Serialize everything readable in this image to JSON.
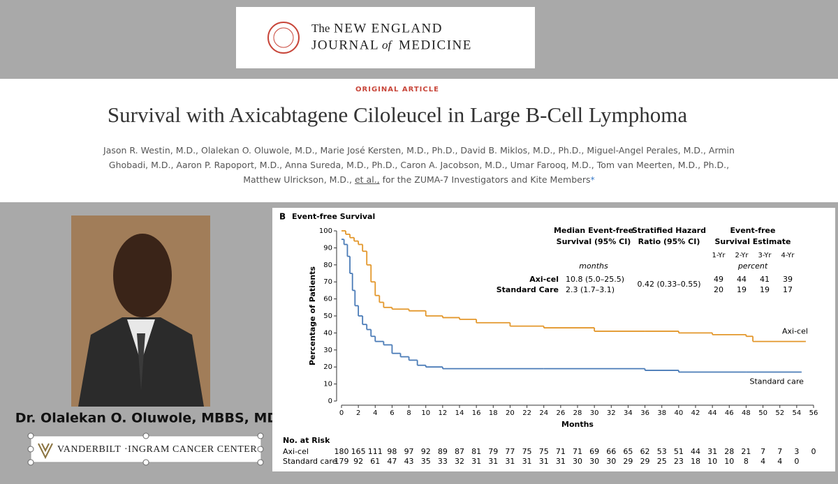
{
  "journal": {
    "line1_prefix": "The",
    "line1": "NEW ENGLAND",
    "line2_a": "JOURNAL",
    "line2_of": "of",
    "line2_b": "MEDICINE"
  },
  "article": {
    "kicker": "ORIGINAL ARTICLE",
    "title": "Survival with Axicabtagene Ciloleucel in Large B-Cell Lymphoma",
    "authors": "Jason R. Westin, M.D., Olalekan O. Oluwole, M.D., Marie José Kersten, M.D., Ph.D., David B. Miklos, M.D., Ph.D., Miguel-Angel Perales, M.D., Armin Ghobadi, M.D., Aaron P. Rapoport, M.D., Anna Sureda, M.D., Ph.D., Caron A. Jacobson, M.D., Umar Farooq, M.D., Tom van Meerten, M.D., Ph.D., Matthew Ulrickson, M.D.,",
    "et_al": "et al.,",
    "authors_end": "for the ZUMA-7 Investigators and Kite Members",
    "asterisk": "*"
  },
  "speaker": {
    "name": "Dr. Olalekan O. Oluwole, MBBS, MD",
    "org_a": "VANDERBILT",
    "org_b": "·INGRAM CANCER CENTER"
  },
  "chart_data": {
    "type": "step",
    "panel": "B",
    "title": "Event-free Survival",
    "x_label": "Months",
    "y_label": "Percentage of Patients",
    "xlim": [
      0,
      56
    ],
    "xticks": [
      0,
      2,
      4,
      6,
      8,
      10,
      12,
      14,
      16,
      18,
      20,
      22,
      24,
      26,
      28,
      30,
      32,
      34,
      36,
      38,
      40,
      42,
      44,
      46,
      48,
      50,
      52,
      54,
      56
    ],
    "ylim": [
      0,
      100
    ],
    "yticks": [
      0,
      10,
      20,
      30,
      40,
      50,
      60,
      70,
      80,
      90,
      100
    ],
    "series": [
      {
        "name": "Axi-cel",
        "color": "#e3972b",
        "x": [
          0,
          0.5,
          1,
          1.5,
          2,
          2.5,
          3,
          3.5,
          4,
          4.5,
          5,
          6,
          8,
          10,
          12,
          14,
          16,
          20,
          24,
          30,
          36,
          40,
          44,
          48,
          48.8,
          55
        ],
        "values": [
          100,
          98,
          96,
          94,
          92,
          88,
          80,
          70,
          62,
          58,
          55,
          54,
          53,
          50,
          49,
          48,
          46,
          44,
          43,
          41,
          41,
          40,
          39,
          38,
          35,
          35
        ]
      },
      {
        "name": "Standard care",
        "color": "#4a7bb7",
        "x": [
          0,
          0.3,
          0.7,
          1,
          1.3,
          1.6,
          2,
          2.5,
          3,
          3.5,
          4,
          5,
          6,
          7,
          8,
          9,
          10,
          12,
          24,
          36,
          40,
          48,
          54.5
        ],
        "values": [
          95,
          92,
          85,
          75,
          65,
          56,
          50,
          45,
          42,
          38,
          35,
          33,
          28,
          26,
          24,
          21,
          20,
          19,
          19,
          18,
          17,
          17,
          17
        ]
      }
    ],
    "stats": {
      "median_header": [
        "Median Event-free",
        "Survival (95% CI)"
      ],
      "hr_header": [
        "Stratified Hazard",
        "Ratio (95% CI)"
      ],
      "efs_header": [
        "Event-free",
        "Survival Estimate"
      ],
      "years": [
        "1-Yr",
        "2-Yr",
        "3-Yr",
        "4-Yr"
      ],
      "median_unit": "months",
      "efs_unit": "percent",
      "rows": [
        {
          "label": "Axi-cel",
          "median": "10.8 (5.0–25.5)",
          "estimates": [
            49,
            44,
            41,
            39
          ]
        },
        {
          "label": "Standard Care",
          "median": "2.3 (1.7–3.1)",
          "estimates": [
            20,
            19,
            19,
            17
          ]
        }
      ],
      "hr": "0.42 (0.33–0.55)"
    },
    "risk_title": "No. at Risk",
    "risk": [
      [
        180,
        165,
        111,
        98,
        97,
        92,
        89,
        87,
        81,
        79,
        77,
        75,
        75,
        71,
        71,
        69,
        66,
        65,
        62,
        53,
        51,
        44,
        31,
        28,
        21,
        7,
        7,
        3,
        0
      ],
      [
        179,
        92,
        61,
        47,
        43,
        35,
        33,
        32,
        31,
        31,
        31,
        31,
        31,
        31,
        30,
        30,
        30,
        29,
        29,
        25,
        23,
        18,
        10,
        10,
        8,
        4,
        4,
        0
      ]
    ]
  }
}
